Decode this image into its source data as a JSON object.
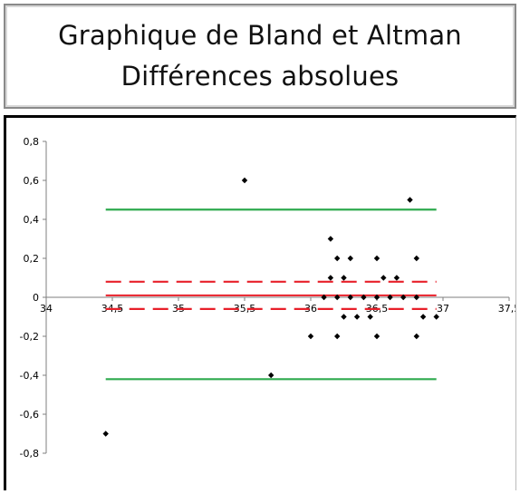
{
  "chart_data": {
    "type": "scatter",
    "title": "Graphique de Bland et Altman",
    "subtitle": "Différences absolues",
    "xlim": [
      34,
      37.5
    ],
    "ylim": [
      -0.8,
      0.8
    ],
    "x_ticks": [
      "34",
      "34,5",
      "35",
      "35,5",
      "36",
      "36,5",
      "37",
      "37,5"
    ],
    "y_ticks": [
      "0,8",
      "0,6",
      "0,4",
      "0,2",
      "0",
      "-0,2",
      "-0,4",
      "-0,6",
      "-0,8"
    ],
    "points": [
      {
        "x": 34.45,
        "y": -0.7
      },
      {
        "x": 35.5,
        "y": 0.6
      },
      {
        "x": 35.7,
        "y": -0.4
      },
      {
        "x": 36.0,
        "y": -0.2
      },
      {
        "x": 36.1,
        "y": 0.0
      },
      {
        "x": 36.15,
        "y": 0.3
      },
      {
        "x": 36.15,
        "y": 0.1
      },
      {
        "x": 36.2,
        "y": 0.2
      },
      {
        "x": 36.2,
        "y": 0.0
      },
      {
        "x": 36.2,
        "y": -0.2
      },
      {
        "x": 36.25,
        "y": 0.1
      },
      {
        "x": 36.25,
        "y": -0.1
      },
      {
        "x": 36.3,
        "y": 0.2
      },
      {
        "x": 36.3,
        "y": 0.0
      },
      {
        "x": 36.35,
        "y": -0.1
      },
      {
        "x": 36.4,
        "y": 0.0
      },
      {
        "x": 36.45,
        "y": -0.1
      },
      {
        "x": 36.5,
        "y": 0.2
      },
      {
        "x": 36.5,
        "y": 0.0
      },
      {
        "x": 36.5,
        "y": -0.2
      },
      {
        "x": 36.55,
        "y": 0.1
      },
      {
        "x": 36.6,
        "y": 0.0
      },
      {
        "x": 36.65,
        "y": 0.1
      },
      {
        "x": 36.7,
        "y": 0.0
      },
      {
        "x": 36.75,
        "y": 0.5
      },
      {
        "x": 36.8,
        "y": 0.2
      },
      {
        "x": 36.8,
        "y": 0.0
      },
      {
        "x": 36.8,
        "y": -0.2
      },
      {
        "x": 36.85,
        "y": -0.1
      },
      {
        "x": 36.95,
        "y": -0.1
      }
    ],
    "reference_lines": [
      {
        "kind": "limit",
        "y": 0.45,
        "x_range": [
          34.45,
          36.95
        ],
        "color": "#2eaa4e",
        "style": "solid"
      },
      {
        "kind": "limit",
        "y": -0.42,
        "x_range": [
          34.45,
          36.95
        ],
        "color": "#2eaa4e",
        "style": "solid"
      },
      {
        "kind": "mean",
        "y": 0.01,
        "x_range": [
          34.45,
          36.95
        ],
        "color": "#e8202a",
        "style": "solid"
      },
      {
        "kind": "ci",
        "y": 0.08,
        "x_range": [
          34.45,
          36.95
        ],
        "color": "#e8202a",
        "style": "dashed"
      },
      {
        "kind": "ci",
        "y": -0.06,
        "x_range": [
          34.45,
          36.95
        ],
        "color": "#e8202a",
        "style": "dashed"
      }
    ],
    "grid": false,
    "legend": "none"
  }
}
